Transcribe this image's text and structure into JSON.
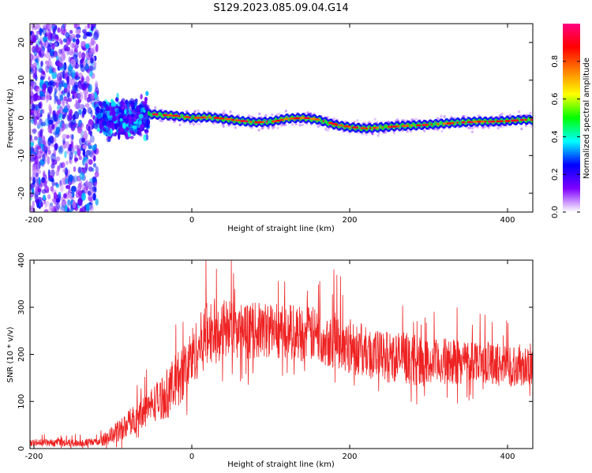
{
  "figure": {
    "title": "S129.2023.085.09.04.G14"
  },
  "chart_data": [
    {
      "type": "heatmap",
      "title": "S129.2023.085.09.04.G14",
      "xlabel": "Height of straight line (km)",
      "ylabel": "Frequency (Hz)",
      "xlim": [
        -205,
        432
      ],
      "ylim": [
        -25,
        25
      ],
      "x_ticks": [
        -200,
        0,
        200,
        400
      ],
      "y_ticks": [
        -20,
        -10,
        0,
        10,
        20
      ],
      "colorbar": {
        "label": "Normalized spectral amplitude",
        "range": [
          0,
          1
        ],
        "ticks": [
          0.0,
          0.2,
          0.4,
          0.6,
          0.8
        ],
        "colormap": [
          "#ffffff",
          "#7f00ff",
          "#0000ff",
          "#00ffff",
          "#00ff00",
          "#ffff00",
          "#ff8000",
          "#ff0000",
          "#ff0080"
        ]
      },
      "ridge": {
        "x": [
          -55,
          -40,
          -20,
          0,
          20,
          40,
          60,
          80,
          100,
          120,
          140,
          160,
          180,
          200,
          220,
          240,
          260,
          280,
          300,
          320,
          340,
          360,
          380,
          400,
          420,
          432
        ],
        "frequency": [
          1.0,
          0.8,
          0.5,
          0.0,
          0.2,
          -0.3,
          -0.8,
          -1.2,
          -1.0,
          -0.2,
          0.0,
          -0.5,
          -1.8,
          -2.5,
          -2.8,
          -2.5,
          -2.2,
          -2.0,
          -1.8,
          -1.5,
          -1.2,
          -1.0,
          -1.0,
          -0.8,
          -0.5,
          -0.5
        ]
      },
      "noise_region_x": [
        -205,
        -120
      ],
      "transition_region_x": [
        -120,
        -55
      ]
    },
    {
      "type": "line",
      "xlabel": "Height of straight line (km)",
      "ylabel": "SNR (10 * v/v)",
      "xlim": [
        -205,
        432
      ],
      "ylim": [
        0,
        400
      ],
      "x_ticks": [
        -200,
        0,
        200,
        400
      ],
      "y_ticks": [
        0,
        100,
        200,
        300,
        400
      ],
      "series": [
        {
          "color": "#ee2222",
          "x": [
            -205,
            -180,
            -160,
            -140,
            -120,
            -110,
            -100,
            -90,
            -80,
            -70,
            -60,
            -50,
            -40,
            -30,
            -20,
            -10,
            0,
            10,
            20,
            30,
            40,
            50,
            60,
            80,
            100,
            120,
            140,
            160,
            180,
            200,
            220,
            240,
            260,
            280,
            300,
            320,
            340,
            360,
            380,
            400,
            420,
            432
          ],
          "mean": [
            12,
            12,
            12,
            12,
            14,
            20,
            30,
            40,
            55,
            65,
            80,
            95,
            105,
            120,
            140,
            165,
            195,
            220,
            245,
            250,
            255,
            250,
            248,
            250,
            252,
            250,
            245,
            240,
            230,
            220,
            205,
            195,
            195,
            190,
            180,
            185,
            185,
            190,
            180,
            175,
            178,
            180
          ],
          "spread": [
            8,
            8,
            8,
            8,
            8,
            14,
            20,
            24,
            28,
            32,
            36,
            40,
            45,
            55,
            60,
            60,
            65,
            65,
            70,
            70,
            65,
            65,
            60,
            60,
            60,
            60,
            60,
            60,
            60,
            60,
            55,
            55,
            55,
            55,
            50,
            50,
            50,
            45,
            45,
            45,
            45,
            45
          ],
          "peaks": [
            {
              "x": 18,
              "y": 400
            },
            {
              "x": 50,
              "y": 400
            },
            {
              "x": 180,
              "y": 380
            }
          ]
        }
      ]
    }
  ]
}
